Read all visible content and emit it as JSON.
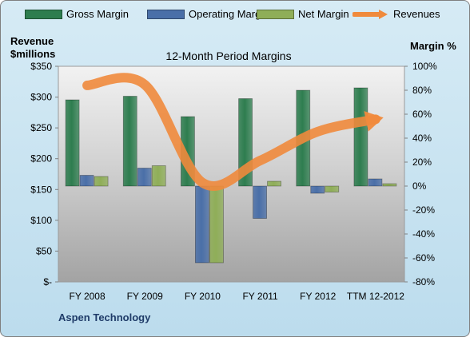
{
  "chart_data": {
    "type": "bar+line",
    "title": "12-Month Period Margins",
    "categories": [
      "FY 2008",
      "FY 2009",
      "FY 2010",
      "FY 2011",
      "FY 2012",
      "TTM 12-2012"
    ],
    "left_axis": {
      "label_line1": "Revenue",
      "label_line2": "$millions",
      "range": [
        0,
        350
      ],
      "ticks": [
        0,
        50,
        100,
        150,
        200,
        250,
        300,
        350
      ],
      "tick_labels": [
        "$-",
        "$50",
        "$100",
        "$150",
        "$200",
        "$250",
        "$300",
        "$350"
      ]
    },
    "right_axis": {
      "label": "Margin %",
      "range": [
        -80,
        100
      ],
      "ticks": [
        -80,
        -60,
        -40,
        -20,
        0,
        20,
        40,
        60,
        80,
        100
      ],
      "tick_labels": [
        "-80%",
        "-60%",
        "-40%",
        "-20%",
        "0%",
        "20%",
        "40%",
        "60%",
        "80%",
        "100%"
      ]
    },
    "series": [
      {
        "name": "Gross Margin",
        "type": "bar",
        "axis": "right",
        "color": "#2e7d4f",
        "values": [
          72,
          75,
          58,
          73,
          80,
          82
        ]
      },
      {
        "name": "Operating Margin",
        "type": "bar",
        "axis": "right",
        "color": "#4a6fa8",
        "values": [
          9,
          15,
          -64,
          -27,
          -6,
          6
        ]
      },
      {
        "name": "Net Margin",
        "type": "bar",
        "axis": "right",
        "color": "#8fae58",
        "values": [
          8,
          17,
          -64,
          4,
          -5,
          2
        ]
      },
      {
        "name": "Revenues",
        "type": "line",
        "axis": "left",
        "color": "#f08a3c",
        "values": [
          319,
          320,
          161,
          197,
          244,
          264
        ]
      }
    ],
    "legend_position": "top",
    "grid": false
  },
  "company": "Aspen Technology"
}
